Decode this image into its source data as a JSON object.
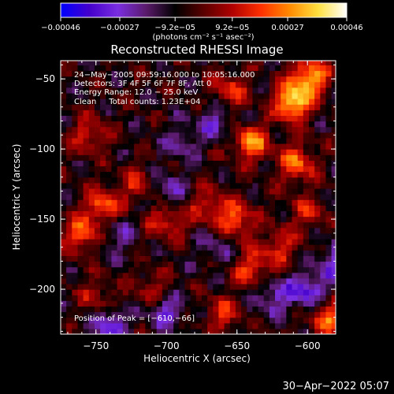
{
  "chart_data": {
    "type": "heatmap",
    "title": "Reconstructed RHESSI Image",
    "xlabel": "Heliocentric X (arcsec)",
    "ylabel": "Heliocentric Y (arcsec)",
    "xlim": [
      -775,
      -580
    ],
    "ylim": [
      -232,
      -37
    ],
    "x_ticks": [
      -750,
      -700,
      -650,
      -600
    ],
    "x_tick_labels": [
      "−750",
      "−700",
      "−650",
      "−600"
    ],
    "y_ticks": [
      -50,
      -100,
      -150,
      -200
    ],
    "y_tick_labels": [
      "−50",
      "−100",
      "−150",
      "−200"
    ],
    "colorbar": {
      "range": [
        -0.00046,
        0.00046
      ],
      "ticks": [
        -0.00046,
        -0.00027,
        -9.2e-05,
        9.2e-05,
        0.00027,
        0.00046
      ],
      "tick_labels": [
        "−0.00046",
        "−0.00027",
        "−9.2e−05",
        "9.2e−05",
        "0.00027",
        "0.00046"
      ],
      "units": "(photons cm⁻² s⁻¹ asec⁻²)",
      "colors": [
        "#0000ff",
        "#4400cc",
        "#7a2ee0",
        "#5a1a6a",
        "#000000",
        "#5a0000",
        "#b00000",
        "#ff3000",
        "#ff8a00",
        "#ffe040",
        "#ffffff"
      ]
    },
    "annotations": {
      "line1": "24−May−2005 09:59:16.000 to 10:05:16.000",
      "line2": "Detectors: 3F 4F 5F 6F 7F 8F, Att 0",
      "line3": "Energy Range: 12.0 − 25.0 keV",
      "line4": "Clean     Total counts: 1.23E+04",
      "peak": "Position of Peak = [−610,−66]"
    },
    "hotspots": [
      {
        "x": -610,
        "y": -66,
        "v": 0.00046
      },
      {
        "x": -598,
        "y": -48,
        "v": 0.00038
      },
      {
        "x": -608,
        "y": -110,
        "v": 0.0003
      },
      {
        "x": -640,
        "y": -95,
        "v": 0.00034
      },
      {
        "x": -655,
        "y": -58,
        "v": 0.00022
      },
      {
        "x": -755,
        "y": -90,
        "v": 0.0002
      },
      {
        "x": -760,
        "y": -160,
        "v": 0.00028
      },
      {
        "x": -745,
        "y": -140,
        "v": 0.0003
      },
      {
        "x": -720,
        "y": -125,
        "v": 0.00018
      },
      {
        "x": -700,
        "y": -150,
        "v": 0.00024
      },
      {
        "x": -710,
        "y": -200,
        "v": 0.00015
      },
      {
        "x": -670,
        "y": -140,
        "v": 0.0002
      },
      {
        "x": -650,
        "y": -150,
        "v": 0.00028
      },
      {
        "x": -640,
        "y": -185,
        "v": 0.00024
      },
      {
        "x": -660,
        "y": -218,
        "v": 0.0002
      },
      {
        "x": -620,
        "y": -170,
        "v": 0.00022
      },
      {
        "x": -600,
        "y": -145,
        "v": 0.00018
      },
      {
        "x": -585,
        "y": -220,
        "v": 0.0003
      },
      {
        "x": -750,
        "y": -205,
        "v": 0.00016
      }
    ],
    "coldspots": [
      {
        "x": -700,
        "y": -130,
        "v": -0.0002
      },
      {
        "x": -735,
        "y": -160,
        "v": -0.00015
      },
      {
        "x": -665,
        "y": -80,
        "v": -0.00018
      },
      {
        "x": -580,
        "y": -180,
        "v": -0.00022
      },
      {
        "x": -600,
        "y": -200,
        "v": -0.00028
      },
      {
        "x": -740,
        "y": -225,
        "v": -0.00025
      },
      {
        "x": -700,
        "y": -215,
        "v": -0.00022
      },
      {
        "x": -625,
        "y": -205,
        "v": -0.0002
      },
      {
        "x": -690,
        "y": -95,
        "v": -0.00015
      },
      {
        "x": -665,
        "y": -170,
        "v": -0.00012
      }
    ]
  },
  "footer": {
    "timestamp": "30−Apr−2022 05:07"
  }
}
